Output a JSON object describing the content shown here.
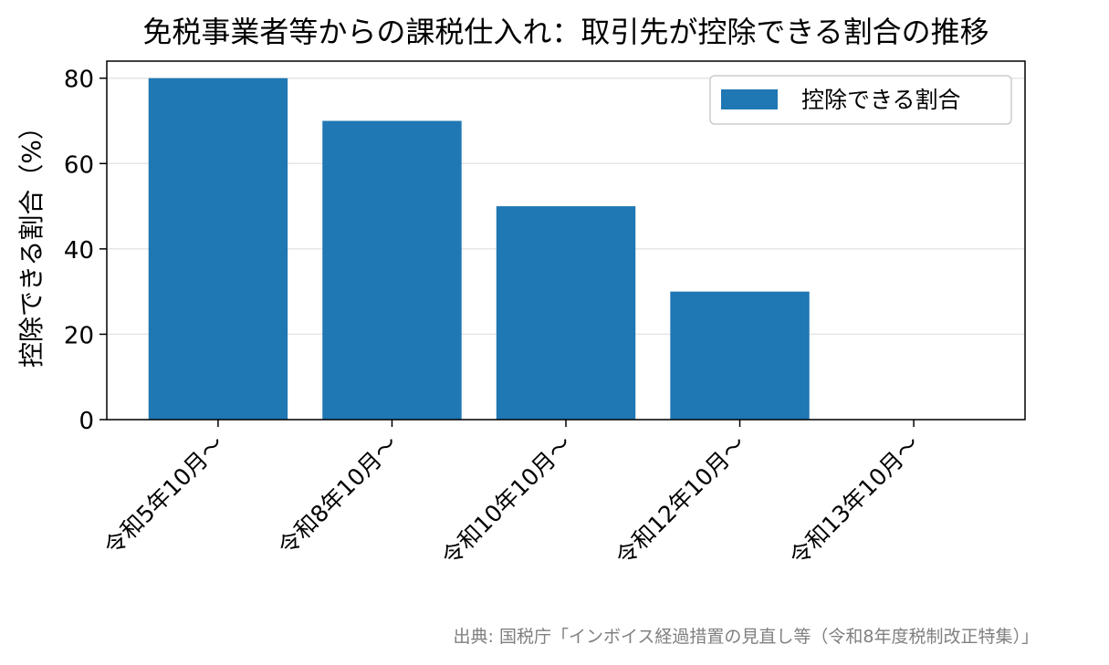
{
  "chart_data": {
    "type": "bar",
    "title": "免税事業者等からの課税仕入れ：取引先が控除できる割合の推移",
    "ylabel": "控除できる割合（%）",
    "xlabel": "",
    "categories": [
      "令和5年10月〜",
      "令和8年10月〜",
      "令和10年10月〜",
      "令和12年10月〜",
      "令和13年10月〜"
    ],
    "series": [
      {
        "name": "控除できる割合",
        "values": [
          80,
          70,
          50,
          30,
          0
        ],
        "color": "#1f77b4"
      }
    ],
    "ylim": [
      0,
      84
    ],
    "yticks": [
      0,
      20,
      40,
      60,
      80
    ],
    "grid": "y",
    "legend": "top-right",
    "source": "出典: 国税庁「インボイス経過措置の見直し等（令和8年度税制改正特集）」"
  }
}
